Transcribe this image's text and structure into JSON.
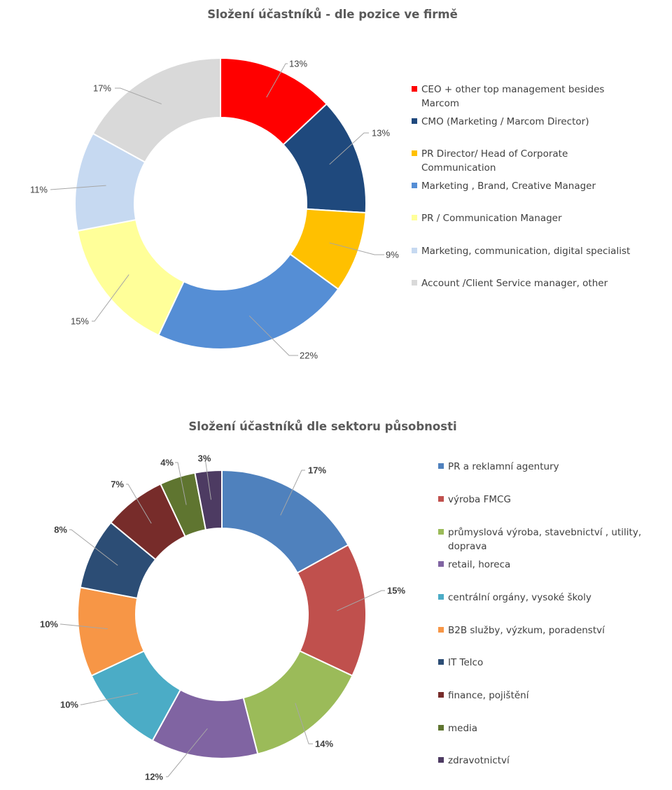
{
  "chart_data": [
    {
      "type": "pie",
      "title": "Složení účastníků  - dle pozice ve firmě",
      "categories": [
        "CEO + other top management besides Marcom",
        "CMO (Marketing / Marcom Director)",
        "PR Director/ Head of  Corporate Communication",
        "Marketing , Brand, Creative  Manager",
        "PR / Communication Manager",
        "Marketing, communication, digital specialist",
        "Account /Client Service manager, other"
      ],
      "values": [
        13,
        13,
        9,
        22,
        15,
        11,
        17
      ],
      "labels": [
        "13%",
        "13%",
        "9%",
        "22%",
        "15%",
        "11%",
        "17%"
      ],
      "colors": [
        "#FF0000",
        "#1F497D",
        "#FFC000",
        "#558ED5",
        "#FFFF99",
        "#C6D9F1",
        "#D9D9D9"
      ],
      "hole": "donut",
      "legend_position": "right"
    },
    {
      "type": "pie",
      "title": "Složení účastníků  dle sektoru působnosti",
      "categories": [
        "PR a reklamní  agentury",
        "výroba FMCG",
        "průmyslová výroba, stavebnictví , utility, doprava",
        "retail, horeca",
        "centrální orgány, vysoké školy",
        "B2B služby, výzkum, poradenství",
        "IT Telco",
        "finance, pojištění",
        "media",
        "zdravotnictví"
      ],
      "values": [
        17,
        15,
        14,
        12,
        10,
        10,
        8,
        7,
        4,
        3
      ],
      "labels": [
        "17%",
        "15%",
        "14%",
        "12%",
        "10%",
        "10%",
        "8%",
        "7%",
        "4%",
        "3%"
      ],
      "colors": [
        "#4F81BD",
        "#C0504D",
        "#9BBB59",
        "#8064A2",
        "#4BACC6",
        "#F79646",
        "#2C4D75",
        "#772C2A",
        "#5F7530",
        "#4D3B62"
      ],
      "hole": "donut",
      "legend_position": "right"
    }
  ]
}
